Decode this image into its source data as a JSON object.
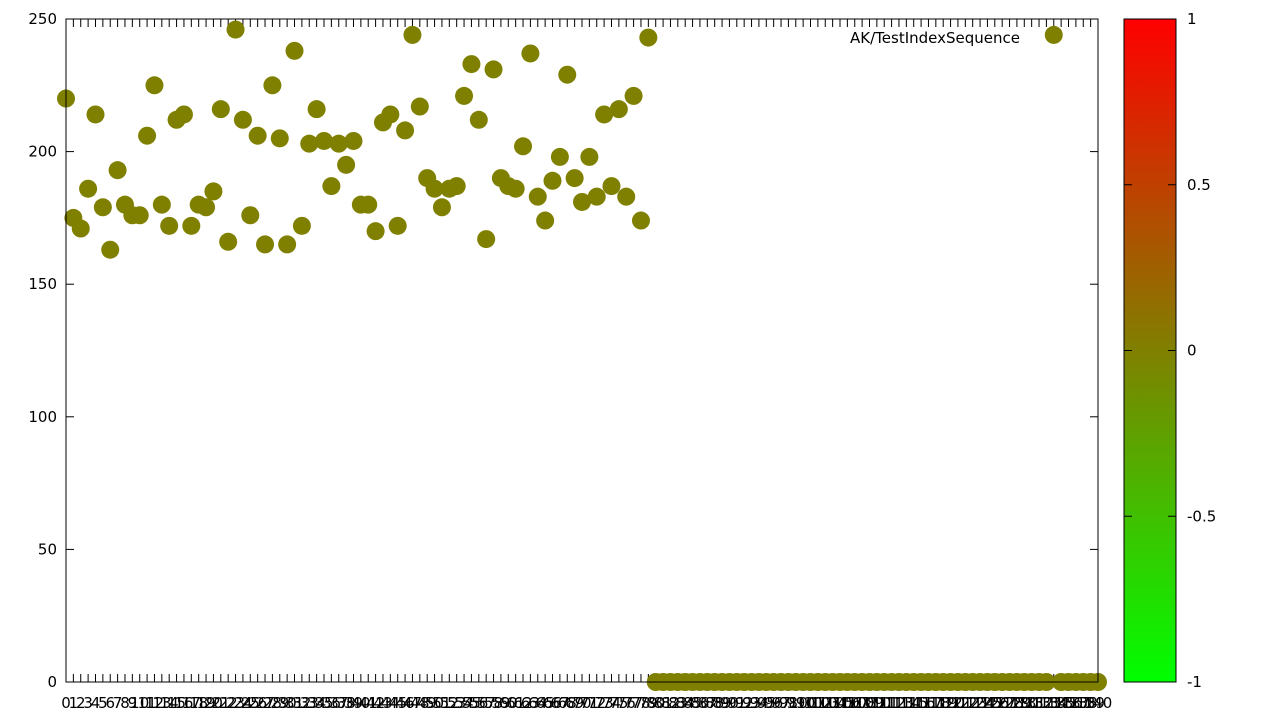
{
  "chart_data": {
    "type": "scatter",
    "title": "",
    "legend": {
      "label": "AK/TestIndexSequence",
      "position": "top-right"
    },
    "xlabel": "",
    "ylabel": "",
    "xlim": [
      0,
      140
    ],
    "ylim": [
      0,
      250
    ],
    "y_ticks": [
      "0",
      "50",
      "100",
      "150",
      "200",
      "250"
    ],
    "point_color": "#808000",
    "series": [
      {
        "name": "AK/TestIndexSequence",
        "x": [
          0,
          1,
          2,
          3,
          4,
          5,
          6,
          7,
          8,
          9,
          10,
          11,
          12,
          13,
          14,
          15,
          16,
          17,
          18,
          19,
          20,
          21,
          22,
          23,
          24,
          25,
          26,
          27,
          28,
          29,
          30,
          31,
          32,
          33,
          34,
          35,
          36,
          37,
          38,
          39,
          40,
          41,
          42,
          43,
          44,
          45,
          46,
          47,
          48,
          49,
          50,
          51,
          52,
          53,
          54,
          55,
          56,
          57,
          58,
          59,
          60,
          61,
          62,
          63,
          64,
          65,
          66,
          67,
          68,
          69,
          70,
          71,
          72,
          73,
          74,
          75,
          76,
          77,
          78,
          79,
          80,
          81,
          82,
          83,
          84,
          85,
          86,
          87,
          88,
          89,
          90,
          91,
          92,
          93,
          94,
          95,
          96,
          97,
          98,
          99,
          100,
          101,
          102,
          103,
          104,
          105,
          106,
          107,
          108,
          109,
          110,
          111,
          112,
          113,
          114,
          115,
          116,
          117,
          118,
          119,
          120,
          121,
          122,
          123,
          124,
          125,
          126,
          127,
          128,
          129,
          130,
          131,
          132,
          133,
          134,
          135,
          136,
          137,
          138,
          139,
          140
        ],
        "values": [
          220,
          175,
          171,
          186,
          214,
          179,
          163,
          193,
          180,
          176,
          176,
          206,
          225,
          180,
          172,
          212,
          214,
          172,
          180,
          179,
          185,
          216,
          166,
          246,
          212,
          176,
          206,
          165,
          225,
          205,
          165,
          238,
          172,
          203,
          216,
          204,
          187,
          203,
          195,
          204,
          180,
          180,
          170,
          211,
          214,
          172,
          208,
          244,
          217,
          190,
          186,
          179,
          186,
          187,
          221,
          233,
          212,
          167,
          231,
          190,
          187,
          186,
          202,
          237,
          183,
          174,
          189,
          198,
          229,
          190,
          181,
          198,
          183,
          214,
          187,
          216,
          183,
          221,
          174,
          243,
          0,
          0,
          0,
          0,
          0,
          0,
          0,
          0,
          0,
          0,
          0,
          0,
          0,
          0,
          0,
          0,
          0,
          0,
          0,
          0,
          0,
          0,
          0,
          0,
          0,
          0,
          0,
          0,
          0,
          0,
          0,
          0,
          0,
          0,
          0,
          0,
          0,
          0,
          0,
          0,
          0,
          0,
          0,
          0,
          0,
          0,
          0,
          0,
          0,
          0,
          0,
          0,
          0,
          0,
          244,
          0,
          0,
          0,
          0,
          0,
          0
        ]
      }
    ],
    "colorbar": {
      "min": -1,
      "max": 1,
      "ticks": [
        "1",
        "0.5",
        "0",
        "-0.5",
        "-1"
      ],
      "colors": [
        "#ff0000",
        "#808000",
        "#00ff00"
      ]
    }
  }
}
